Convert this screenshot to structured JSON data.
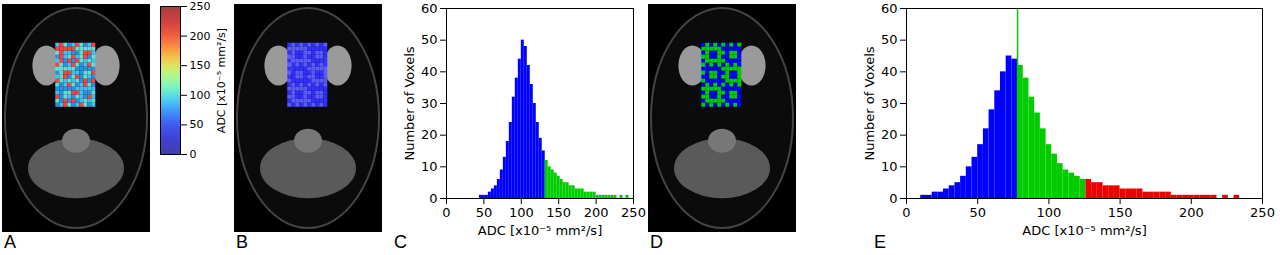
{
  "chart_data": [
    {
      "type": "image",
      "panel": "A",
      "colors": [
        "#40c0f0",
        "#2a90e0",
        "#60e0d0",
        "#ff4040"
      ],
      "colorbar": {
        "label": "ADC [x10⁻⁵ mm²/s]",
        "lim": [
          0,
          250
        ],
        "ticks": [
          0,
          50,
          100,
          150,
          200,
          250
        ]
      }
    },
    {
      "type": "image",
      "panel": "B",
      "colors": [
        "#3030ff",
        "#5a5aff"
      ]
    },
    {
      "type": "histogram",
      "panel": "C",
      "xlabel": "ADC [x10⁻⁵ mm²/s]",
      "ylabel": "Number of Voxels",
      "xlim": [
        0,
        250
      ],
      "xticks": [
        0,
        50,
        100,
        150,
        200,
        250
      ],
      "ylim": [
        0,
        60
      ],
      "yticks": [
        0,
        10,
        20,
        30,
        40,
        50,
        60
      ],
      "series": [
        {
          "color": "#0000ff",
          "bins": [
            40,
            44,
            48,
            52,
            56,
            60,
            64,
            68,
            72,
            76,
            80,
            84,
            88,
            92,
            96,
            100,
            104,
            108,
            112,
            116,
            120,
            124,
            128,
            132
          ],
          "values": [
            0,
            1,
            1,
            1,
            2,
            3,
            4,
            6,
            9,
            13,
            18,
            24,
            32,
            38,
            44,
            50,
            48,
            42,
            36,
            30,
            24,
            19,
            15
          ]
        },
        {
          "color": "#00cc00",
          "bins": [
            132,
            136,
            140,
            144,
            148,
            152,
            156,
            160,
            164,
            168,
            172,
            176,
            180,
            184,
            188,
            192,
            196,
            200,
            204,
            208,
            212,
            216,
            220,
            224,
            228,
            232,
            236,
            240,
            244,
            248
          ],
          "values": [
            12,
            10,
            9,
            8,
            7,
            6,
            5,
            5,
            4,
            4,
            3,
            3,
            3,
            2,
            2,
            2,
            2,
            1,
            1,
            1,
            1,
            1,
            1,
            1,
            0,
            1,
            0,
            1,
            0
          ]
        }
      ]
    },
    {
      "type": "image",
      "panel": "D",
      "colors": [
        "#0000ff",
        "#00cc00"
      ]
    },
    {
      "type": "histogram",
      "panel": "E",
      "xlabel": "ADC [x10⁻⁵ mm²/s]",
      "ylabel": "Number of Voxels",
      "xlim": [
        0,
        250
      ],
      "xticks": [
        0,
        50,
        100,
        150,
        200,
        250
      ],
      "ylim": [
        0,
        60
      ],
      "yticks": [
        0,
        10,
        20,
        30,
        40,
        50,
        60
      ],
      "series": [
        {
          "color": "#0000ff",
          "bins": [
            10,
            14,
            18,
            22,
            26,
            30,
            34,
            38,
            42,
            46,
            50,
            54,
            58,
            62,
            66,
            70,
            74,
            78
          ],
          "values": [
            1,
            1,
            2,
            2,
            3,
            4,
            5,
            7,
            10,
            13,
            17,
            22,
            28,
            34,
            40,
            45,
            44
          ]
        },
        {
          "color": "#00cc00",
          "bins": [
            78,
            82,
            86,
            90,
            94,
            98,
            102,
            106,
            110,
            114,
            118,
            122,
            126
          ],
          "values": [
            42,
            38,
            32,
            27,
            22,
            17,
            14,
            11,
            9,
            8,
            7,
            6
          ]
        },
        {
          "color": "#ee0000",
          "bins": [
            126,
            130,
            134,
            138,
            142,
            146,
            150,
            154,
            158,
            162,
            166,
            170,
            174,
            178,
            182,
            186,
            190,
            194,
            198,
            202,
            206,
            210,
            214,
            218,
            222,
            226,
            230,
            234,
            238
          ],
          "values": [
            6,
            5,
            5,
            4,
            4,
            4,
            3,
            3,
            3,
            3,
            2,
            2,
            2,
            2,
            2,
            1,
            1,
            1,
            1,
            1,
            1,
            1,
            1,
            0,
            1,
            0,
            1,
            0
          ]
        }
      ],
      "vline": {
        "x": 78,
        "color": "#00cc00"
      }
    }
  ]
}
